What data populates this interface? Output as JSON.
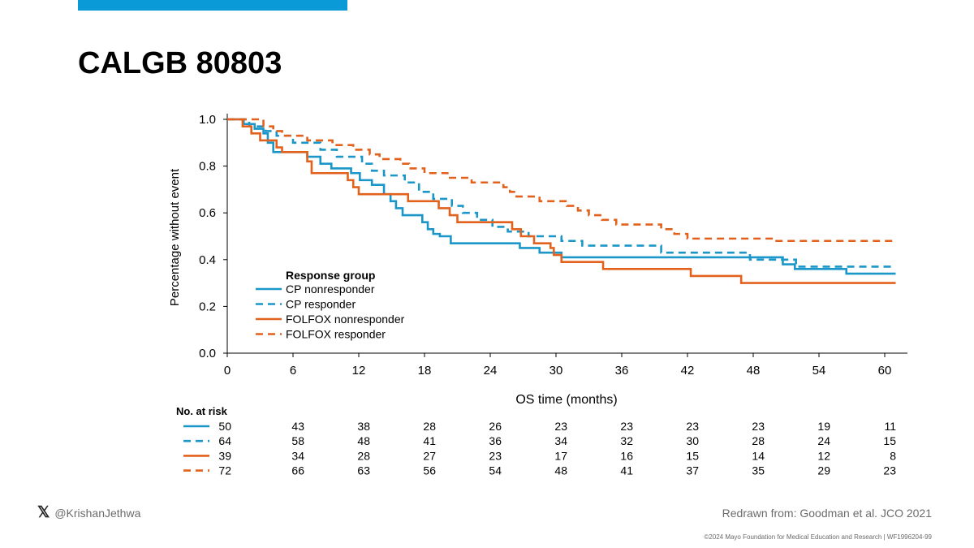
{
  "slide": {
    "title": "CALGB 80803",
    "accent_color": "#0a9ad8",
    "footer_handle": "@KrishanJethwa",
    "x_logo_glyph": "𝕏",
    "source": "Redrawn from: Goodman et al. JCO 2021",
    "copyright": "©2024 Mayo Foundation for Medical Education and Research  |  WF1996204-99"
  },
  "chart_data": {
    "type": "line",
    "subtype": "kaplan-meier",
    "xlabel": "OS time (months)",
    "ylabel": "Percentage without event",
    "xlim": [
      0,
      60
    ],
    "ylim": [
      0,
      1
    ],
    "x_ticks": [
      0,
      6,
      12,
      18,
      24,
      30,
      36,
      42,
      48,
      54,
      60
    ],
    "y_ticks": [
      "0.0",
      "0.2",
      "0.4",
      "0.6",
      "0.8",
      "1.0"
    ],
    "grid": false,
    "legend_title": "Response group",
    "legend_position": "lower-left",
    "series": [
      {
        "name": "CP nonresponder",
        "color": "#1a96c8",
        "dashed": false,
        "points": [
          [
            0,
            1.0
          ],
          [
            1.5,
            0.98
          ],
          [
            2.5,
            0.96
          ],
          [
            3.3,
            0.94
          ],
          [
            3.7,
            0.9
          ],
          [
            4.2,
            0.86
          ],
          [
            7.3,
            0.84
          ],
          [
            8.5,
            0.81
          ],
          [
            9.5,
            0.79
          ],
          [
            11.3,
            0.77
          ],
          [
            12.1,
            0.74
          ],
          [
            13.2,
            0.72
          ],
          [
            14.3,
            0.68
          ],
          [
            14.9,
            0.65
          ],
          [
            15.4,
            0.62
          ],
          [
            16,
            0.59
          ],
          [
            17.8,
            0.56
          ],
          [
            18.3,
            0.53
          ],
          [
            18.8,
            0.51
          ],
          [
            19.4,
            0.5
          ],
          [
            20.4,
            0.47
          ],
          [
            26.7,
            0.45
          ],
          [
            28.5,
            0.43
          ],
          [
            30.5,
            0.41
          ],
          [
            50.7,
            0.38
          ],
          [
            51.8,
            0.36
          ],
          [
            56.5,
            0.34
          ],
          [
            61,
            0.34
          ]
        ],
        "at_risk": [
          50,
          43,
          38,
          28,
          26,
          23,
          23,
          23,
          23,
          19,
          11
        ]
      },
      {
        "name": "CP responder",
        "color": "#1a96c8",
        "dashed": true,
        "points": [
          [
            0,
            1.0
          ],
          [
            2.0,
            0.97
          ],
          [
            3.5,
            0.95
          ],
          [
            4.5,
            0.93
          ],
          [
            6,
            0.9
          ],
          [
            8.5,
            0.87
          ],
          [
            10,
            0.84
          ],
          [
            12.3,
            0.81
          ],
          [
            13.2,
            0.78
          ],
          [
            14.3,
            0.76
          ],
          [
            16.2,
            0.73
          ],
          [
            17.5,
            0.69
          ],
          [
            18.8,
            0.66
          ],
          [
            20.5,
            0.63
          ],
          [
            21.5,
            0.6
          ],
          [
            22.8,
            0.57
          ],
          [
            24.2,
            0.54
          ],
          [
            25.6,
            0.52
          ],
          [
            27.5,
            0.5
          ],
          [
            30.5,
            0.48
          ],
          [
            32.4,
            0.46
          ],
          [
            39.6,
            0.43
          ],
          [
            47.7,
            0.4
          ],
          [
            51.9,
            0.37
          ],
          [
            61,
            0.37
          ]
        ],
        "at_risk": [
          64,
          58,
          48,
          41,
          36,
          34,
          32,
          30,
          28,
          24,
          15
        ]
      },
      {
        "name": "FOLFOX nonresponder",
        "color": "#e2611d",
        "dashed": false,
        "points": [
          [
            0,
            1.0
          ],
          [
            1.4,
            0.97
          ],
          [
            2.2,
            0.94
          ],
          [
            3,
            0.91
          ],
          [
            4.5,
            0.88
          ],
          [
            5,
            0.86
          ],
          [
            7.3,
            0.82
          ],
          [
            7.7,
            0.77
          ],
          [
            11,
            0.74
          ],
          [
            11.5,
            0.71
          ],
          [
            12,
            0.68
          ],
          [
            16.5,
            0.65
          ],
          [
            19.3,
            0.62
          ],
          [
            20.3,
            0.59
          ],
          [
            21,
            0.56
          ],
          [
            26,
            0.53
          ],
          [
            26.8,
            0.5
          ],
          [
            28,
            0.47
          ],
          [
            29.5,
            0.45
          ],
          [
            29.8,
            0.42
          ],
          [
            30.5,
            0.39
          ],
          [
            34.3,
            0.36
          ],
          [
            42.3,
            0.33
          ],
          [
            46.9,
            0.3
          ],
          [
            61,
            0.3
          ]
        ],
        "at_risk": [
          39,
          34,
          28,
          27,
          23,
          17,
          16,
          15,
          14,
          12,
          8
        ]
      },
      {
        "name": "FOLFOX responder",
        "color": "#e2611d",
        "dashed": true,
        "points": [
          [
            0,
            1.0
          ],
          [
            3.3,
            0.97
          ],
          [
            4.2,
            0.95
          ],
          [
            5,
            0.93
          ],
          [
            7.3,
            0.91
          ],
          [
            9.6,
            0.89
          ],
          [
            11.5,
            0.87
          ],
          [
            13,
            0.85
          ],
          [
            13.9,
            0.83
          ],
          [
            15.8,
            0.81
          ],
          [
            16.6,
            0.79
          ],
          [
            18,
            0.77
          ],
          [
            20.1,
            0.75
          ],
          [
            22.3,
            0.73
          ],
          [
            25.2,
            0.71
          ],
          [
            25.8,
            0.69
          ],
          [
            26.4,
            0.67
          ],
          [
            28.5,
            0.65
          ],
          [
            31,
            0.63
          ],
          [
            32,
            0.61
          ],
          [
            33,
            0.59
          ],
          [
            34.2,
            0.57
          ],
          [
            35.5,
            0.55
          ],
          [
            39.6,
            0.53
          ],
          [
            40.8,
            0.51
          ],
          [
            42,
            0.49
          ],
          [
            50,
            0.48
          ],
          [
            61,
            0.48
          ]
        ],
        "at_risk": [
          72,
          66,
          63,
          56,
          54,
          48,
          41,
          37,
          35,
          29,
          23
        ]
      }
    ],
    "risk_table": {
      "title": "No. at risk",
      "times": [
        0,
        6,
        12,
        18,
        24,
        30,
        36,
        42,
        48,
        54,
        60
      ]
    }
  }
}
